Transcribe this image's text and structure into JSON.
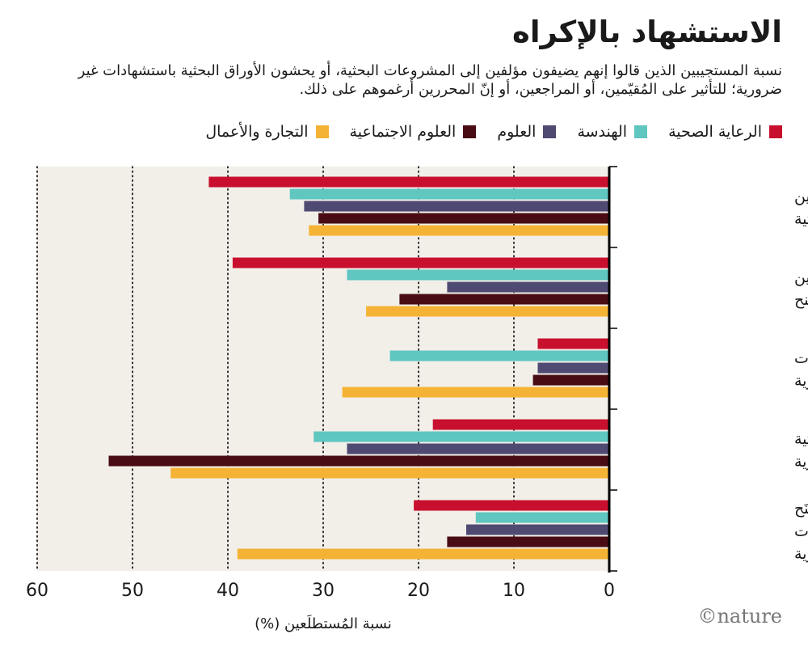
{
  "title": "الاستشهاد بالإكراه",
  "subtitle": "نسبة المستجيبين الذين قالوا إنهم يضيفون مؤلفين إلى المشروعات البحثية، أو يحشون الأوراق البحثية باستشهادات غير ضرورية؛ للتأثير على المُقيّمين، أو المراجعين، أو إنّ المحررين أرغموهم على ذلك.",
  "watermark": "©nature",
  "colors": {
    "background": "#f2efe9",
    "axis": "#000000",
    "grid": "#000000"
  },
  "chart_data": {
    "type": "bar",
    "orientation": "horizontal",
    "direction": "rtl",
    "xlabel": "نسبة المُستطلَعين (%)",
    "xlim": [
      0,
      60
    ],
    "xticks": [
      0,
      10,
      20,
      30,
      40,
      50,
      60
    ],
    "grid": true,
    "legend_position": "top",
    "categories": [
      [
        "إضافة مؤلفين",
        "إلى الأوراق البحثية"
      ],
      [
        "إضافة مؤلفين",
        "إلى المنح"
      ],
      [
        "استشهادات",
        "قسرية"
      ],
      [
        "حشو الأوراق البحثية",
        "باستشهادات غير ضرورية"
      ],
      [
        "حشو المِنَح",
        "باستشهادات",
        "غير ضرورية"
      ]
    ],
    "series": [
      {
        "name": "الرعاية الصحية",
        "color": "#c8102e",
        "values": [
          42,
          39.5,
          7.5,
          18.5,
          20.5
        ]
      },
      {
        "name": "الهندسة",
        "color": "#5fc6c0",
        "values": [
          33.5,
          27.5,
          23,
          31,
          14
        ]
      },
      {
        "name": "العلوم",
        "color": "#4f4a72",
        "values": [
          32,
          17,
          7.5,
          27.5,
          15
        ]
      },
      {
        "name": "العلوم الاجتماعية",
        "color": "#4a0c14",
        "values": [
          30.5,
          22,
          8,
          52.5,
          17
        ]
      },
      {
        "name": "التجارة والأعمال",
        "color": "#f5b335",
        "values": [
          31.5,
          25.5,
          28,
          46,
          39
        ]
      }
    ]
  }
}
